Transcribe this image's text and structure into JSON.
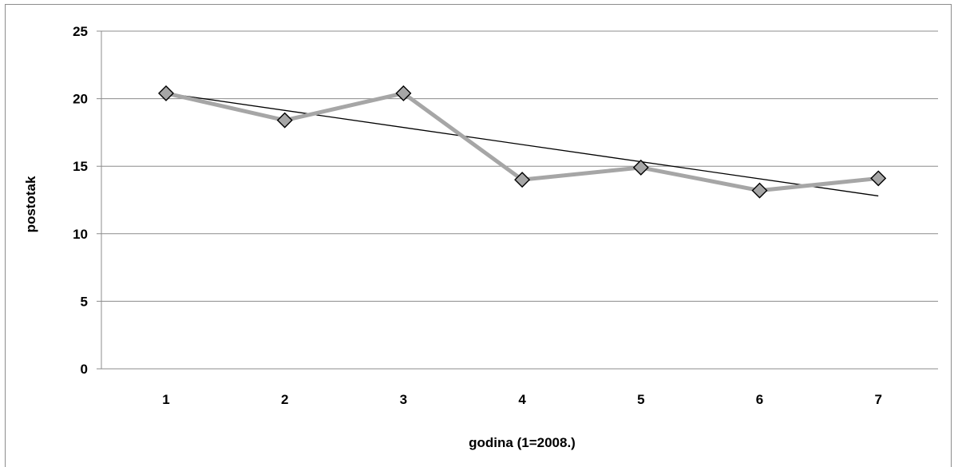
{
  "chart_data": {
    "type": "line",
    "title": "",
    "xlabel": "godina (1=2008.)",
    "ylabel": "postotak",
    "categories": [
      "1",
      "2",
      "3",
      "4",
      "5",
      "6",
      "7"
    ],
    "x": [
      1,
      2,
      3,
      4,
      5,
      6,
      7
    ],
    "series": [
      {
        "values": [
          20.4,
          18.4,
          20.4,
          14.0,
          14.9,
          13.2,
          14.1
        ],
        "color": "#a6a6a6",
        "marker": "diamond",
        "marker_fill": "#a6a6a6",
        "marker_stroke": "#000000"
      }
    ],
    "trendline": {
      "type": "linear",
      "start": [
        1,
        20.4
      ],
      "end": [
        7,
        12.8
      ],
      "color": "#000000"
    },
    "ylim": [
      0,
      25
    ],
    "yticks": [
      0,
      5,
      10,
      15,
      20,
      25
    ],
    "grid": true,
    "legend": "none"
  }
}
